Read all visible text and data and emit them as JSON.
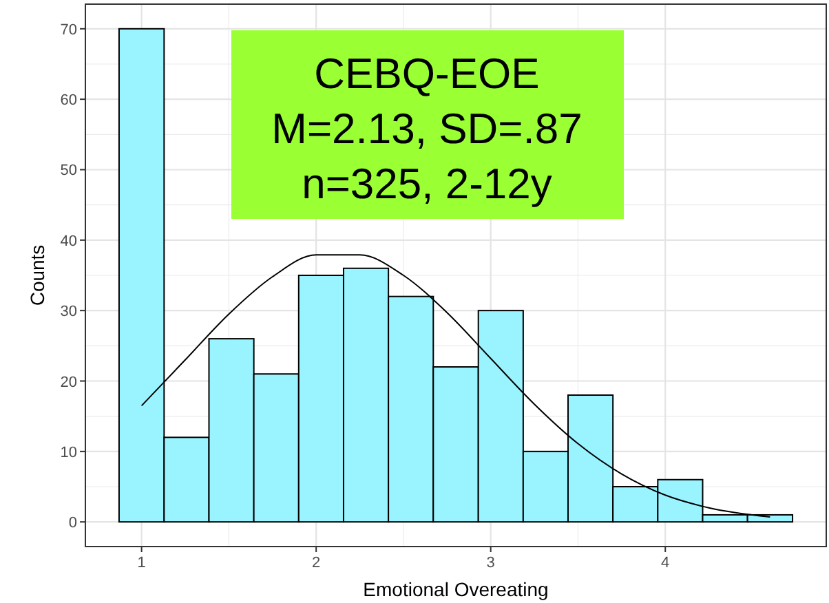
{
  "chart_data": {
    "type": "histogram",
    "xlabel": "Emotional Overeating",
    "ylabel": "Counts",
    "bins": [
      0.871,
      1.129,
      1.386,
      1.643,
      1.9,
      2.157,
      2.414,
      2.671,
      2.929,
      3.186,
      3.443,
      3.7,
      3.957,
      4.214,
      4.471,
      4.729
    ],
    "values": [
      70,
      12,
      26,
      21,
      35,
      36,
      32,
      22,
      30,
      10,
      18,
      5,
      6,
      1,
      1
    ],
    "color": "#9af4ff",
    "series": [
      {
        "type": "line",
        "color": "#000000",
        "x": [
          1,
          1.25,
          1.5,
          1.75,
          2.0,
          2.25,
          2.5,
          2.75,
          3.0,
          3.25,
          3.5,
          3.75,
          4.0,
          4.25,
          4.6
        ],
        "values": [
          16.5,
          23.0,
          29.5,
          34.8,
          37.9,
          37.9,
          35.0,
          29.7,
          23.2,
          16.7,
          11.1,
          6.8,
          3.8,
          2.0,
          0.7
        ]
      }
    ],
    "xlim": [
      0.678,
      4.922
    ],
    "ylim": [
      -3.5,
      73.5
    ],
    "xticks": [
      1,
      2,
      3,
      4
    ],
    "yticks": [
      0,
      10,
      20,
      30,
      40,
      50,
      60,
      70
    ],
    "grid": true,
    "annotations": [
      "CEBQ-EOE\nM=2.13, SD=.87\nn=325, 2-12y"
    ]
  }
}
